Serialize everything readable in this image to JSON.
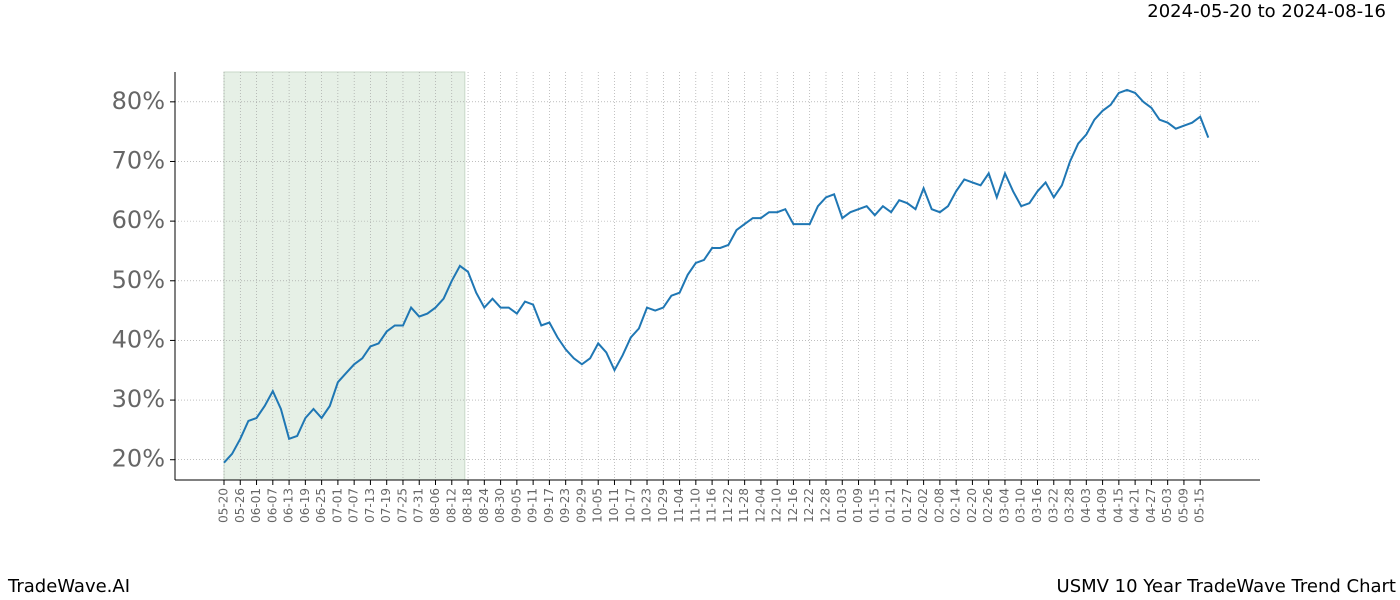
{
  "chart_data": {
    "type": "line",
    "subtitle": "2024-05-20 to 2024-08-16",
    "footer_left": "TradeWave.AI",
    "footer_right": "USMV 10 Year TradeWave Trend Chart",
    "categories": [
      "05-20",
      null,
      "05-26",
      null,
      "06-01",
      null,
      "06-07",
      null,
      "06-13",
      null,
      "06-19",
      null,
      "06-25",
      null,
      "07-01",
      null,
      "07-07",
      null,
      "07-13",
      null,
      "07-19",
      null,
      "07-25",
      null,
      "07-31",
      null,
      "08-06",
      null,
      "08-12",
      null,
      "08-18",
      null,
      "08-24",
      null,
      "08-30",
      null,
      "09-05",
      null,
      "09-11",
      null,
      "09-17",
      null,
      "09-23",
      null,
      "09-29",
      null,
      "10-05",
      null,
      "10-11",
      null,
      "10-17",
      null,
      "10-23",
      null,
      "10-29",
      null,
      "11-04",
      null,
      "11-10",
      null,
      "11-16",
      null,
      "11-22",
      null,
      "11-28",
      null,
      "12-04",
      null,
      "12-10",
      null,
      "12-16",
      null,
      "12-22",
      null,
      "12-28",
      null,
      "01-03",
      null,
      "01-09",
      null,
      "01-15",
      null,
      "01-21",
      null,
      "01-27",
      null,
      "02-02",
      null,
      "02-08",
      null,
      "02-14",
      null,
      "02-20",
      null,
      "02-26",
      null,
      "03-04",
      null,
      "03-10",
      null,
      "03-16",
      null,
      "03-22",
      null,
      "03-28",
      null,
      "04-03",
      null,
      "04-09",
      null,
      "04-15",
      null,
      "04-21",
      null,
      "04-27",
      null,
      "05-03",
      null,
      "05-09",
      null,
      "05-15",
      null
    ],
    "series": [
      {
        "color": "#1f77b4",
        "values": [
          19.5,
          21,
          23.5,
          26.5,
          27,
          29,
          31.5,
          28.5,
          23.5,
          24,
          27,
          28.5,
          27,
          29,
          33,
          34.5,
          36,
          37,
          39,
          39.5,
          41.5,
          42.5,
          42.5,
          45.5,
          44,
          44.5,
          45.5,
          47,
          50,
          52.5,
          51.5,
          48,
          45.5,
          47,
          45.5,
          45.5,
          44.5,
          46.5,
          46,
          42.5,
          43,
          40.5,
          38.5,
          37,
          36,
          37,
          39.5,
          38,
          35,
          37.5,
          40.5,
          42,
          45.5,
          45,
          45.5,
          47.5,
          48,
          51,
          53,
          53.5,
          55.5,
          55.5,
          56,
          58.5,
          59.5,
          60.5,
          60.5,
          61.5,
          61.5,
          62,
          59.5,
          59.5,
          59.5,
          62.5,
          64,
          64.5,
          60.5,
          61.5,
          62,
          62.5,
          61,
          62.5,
          61.5,
          63.5,
          63,
          62,
          65.5,
          62,
          61.5,
          62.5,
          65,
          67,
          66.5,
          66,
          68,
          64,
          68,
          65,
          62.5,
          63,
          65,
          66.5,
          64,
          66,
          70,
          73,
          74.5,
          77,
          78.5,
          79.5,
          81.5,
          82,
          81.5,
          80,
          79,
          77,
          76.5,
          75.5,
          76,
          76.5,
          77.5,
          74
        ]
      }
    ],
    "ylim": [
      16.6,
      85
    ],
    "yticks": [
      {
        "value": 20,
        "label": "20%"
      },
      {
        "value": 30,
        "label": "30%"
      },
      {
        "value": 40,
        "label": "40%"
      },
      {
        "value": 50,
        "label": "50%"
      },
      {
        "value": 60,
        "label": "60%"
      },
      {
        "value": 70,
        "label": "70%"
      },
      {
        "value": 80,
        "label": "80%"
      }
    ],
    "grid": true,
    "highlight_color": "#e6f0e6"
  }
}
